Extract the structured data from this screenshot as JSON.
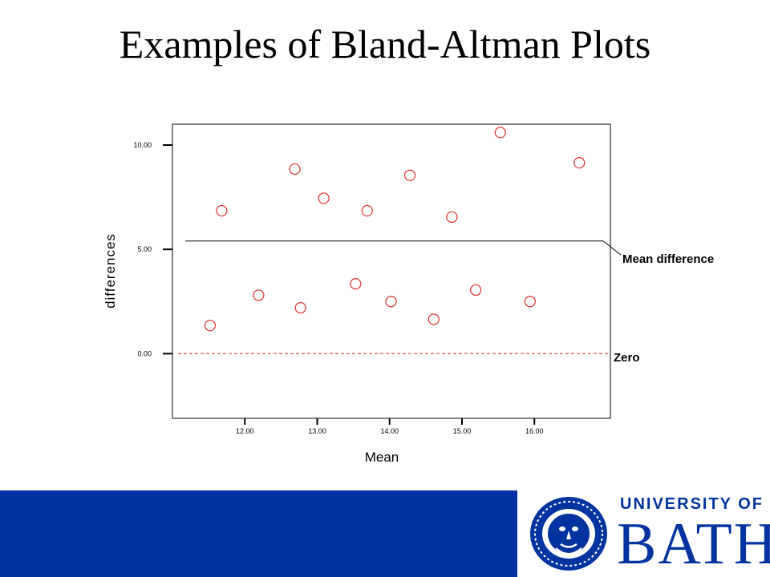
{
  "slide": {
    "title": "Examples of Bland-Altman Plots"
  },
  "chart_data": {
    "type": "scatter",
    "title": "",
    "xlabel": "Mean",
    "ylabel": "differences",
    "xlim": [
      11.0,
      17.05
    ],
    "ylim": [
      -3.1,
      11.0
    ],
    "x_ticks": [
      {
        "value": 12.0,
        "label": "12.00"
      },
      {
        "value": 13.0,
        "label": "13.00"
      },
      {
        "value": 14.0,
        "label": "14.00"
      },
      {
        "value": 15.0,
        "label": "15.00"
      },
      {
        "value": 16.0,
        "label": "16.00"
      }
    ],
    "y_ticks": [
      {
        "value": 0.0,
        "label": "0.00"
      },
      {
        "value": 5.0,
        "label": "5.00"
      },
      {
        "value": 10.0,
        "label": "10.00"
      }
    ],
    "grid": false,
    "points": [
      {
        "x": 11.52,
        "y": 1.35
      },
      {
        "x": 11.68,
        "y": 6.85
      },
      {
        "x": 12.19,
        "y": 2.8
      },
      {
        "x": 12.69,
        "y": 8.85
      },
      {
        "x": 12.77,
        "y": 2.2
      },
      {
        "x": 13.09,
        "y": 7.45
      },
      {
        "x": 13.53,
        "y": 3.35
      },
      {
        "x": 13.69,
        "y": 6.85
      },
      {
        "x": 14.02,
        "y": 2.5
      },
      {
        "x": 14.28,
        "y": 8.55
      },
      {
        "x": 14.61,
        "y": 1.65
      },
      {
        "x": 14.86,
        "y": 6.55
      },
      {
        "x": 15.19,
        "y": 3.05
      },
      {
        "x": 15.53,
        "y": 10.6
      },
      {
        "x": 15.94,
        "y": 2.5
      },
      {
        "x": 16.62,
        "y": 9.15
      }
    ],
    "marker_color": "#e03030",
    "mean_difference": 5.4,
    "mean_line_x": [
      11.18,
      16.95
    ],
    "zero_line_color": "#e03030",
    "annotations": {
      "mean": "Mean difference",
      "zero": "Zero"
    }
  },
  "branding": {
    "bar_color": "#0033a0",
    "logo_line1": "UNIVERSITY OF",
    "logo_line2": "BATH"
  }
}
